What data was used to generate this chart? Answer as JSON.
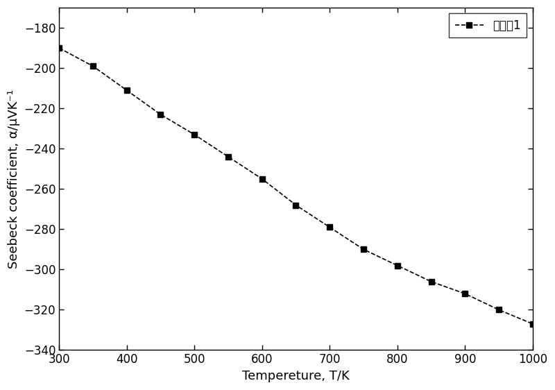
{
  "x": [
    300,
    350,
    400,
    450,
    500,
    550,
    600,
    650,
    700,
    750,
    800,
    850,
    900,
    950,
    1000
  ],
  "y": [
    -190,
    -199,
    -211,
    -223,
    -233,
    -244,
    -255,
    -268,
    -279,
    -290,
    -298,
    -306,
    -312,
    -320,
    -327
  ],
  "xlabel": "Tempereture, T/K",
  "ylabel": "Seebeck coefficient, α/μVK⁻¹",
  "legend_label": "实施例1",
  "xlim": [
    300,
    1000
  ],
  "ylim": [
    -340,
    -170
  ],
  "xticks": [
    300,
    400,
    500,
    600,
    700,
    800,
    900,
    1000
  ],
  "yticks": [
    -340,
    -320,
    -300,
    -280,
    -260,
    -240,
    -220,
    -200,
    -180
  ],
  "line_color": "#000000",
  "marker": "s",
  "marker_size": 6,
  "line_width": 1.2,
  "line_style": "--",
  "bg_color": "#ffffff",
  "label_fontsize": 13,
  "tick_fontsize": 12,
  "legend_fontsize": 12
}
